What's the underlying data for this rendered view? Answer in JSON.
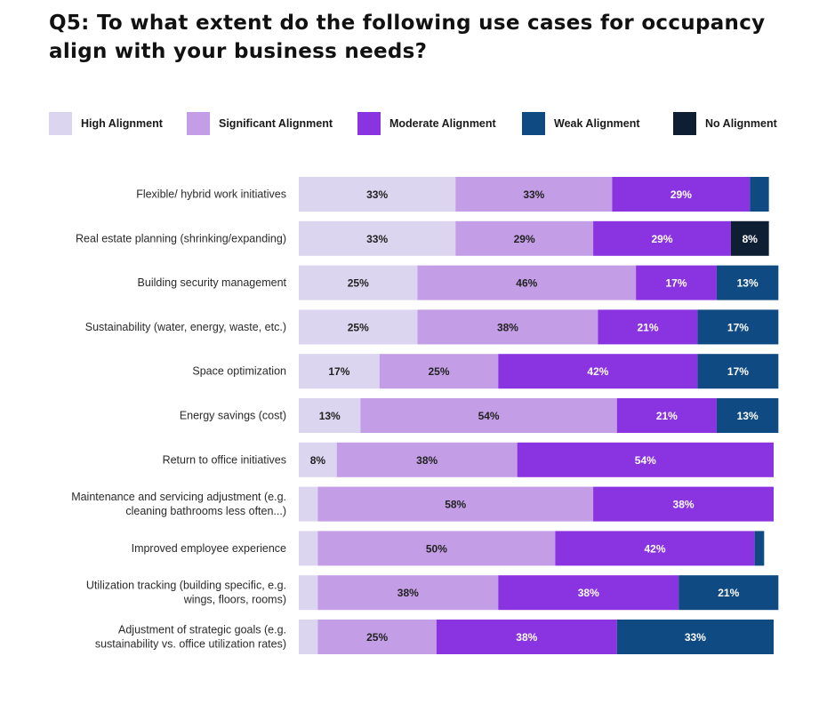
{
  "title": "Q5: To what extent do the following use cases for occupancy align with your business needs?",
  "legend": [
    {
      "name": "High Alignment",
      "color": "#dcd5ef"
    },
    {
      "name": "Significant Alignment",
      "color": "#c39ee6"
    },
    {
      "name": "Moderate Alignment",
      "color": "#8a33e0"
    },
    {
      "name": "Weak Alignment",
      "color": "#0f4a82"
    },
    {
      "name": "No Alignment",
      "color": "#0f1f33"
    }
  ],
  "chart_data": {
    "type": "bar",
    "orientation": "horizontal",
    "stacked": true,
    "percent_stacked": true,
    "title": "Q5: To what extent do the following use cases for occupancy align with your business needs?",
    "categories": [
      [
        "Flexible/ hybrid work initiatives"
      ],
      [
        "Real estate planning (shrinking/expanding)"
      ],
      [
        "Building security management"
      ],
      [
        "Sustainability (water, energy, waste, etc.)"
      ],
      [
        "Space optimization"
      ],
      [
        "Energy savings (cost)"
      ],
      [
        "Return to office initiatives"
      ],
      [
        "Maintenance and servicing adjustment (e.g.",
        "cleaning bathrooms less often...)"
      ],
      [
        "Improved employee experience"
      ],
      [
        "Utilization tracking (building specific, e.g.",
        "wings, floors, rooms)"
      ],
      [
        "Adjustment of strategic goals (e.g.",
        "sustainability vs. office utilization rates)"
      ]
    ],
    "series": [
      {
        "name": "High Alignment",
        "color": "#dcd5ef",
        "text_color": "#222222",
        "values": [
          33,
          33,
          25,
          25,
          17,
          13,
          8,
          4,
          4,
          4,
          4
        ]
      },
      {
        "name": "Significant Alignment",
        "color": "#c39ee6",
        "text_color": "#222222",
        "values": [
          33,
          29,
          46,
          38,
          25,
          54,
          38,
          58,
          50,
          38,
          25
        ]
      },
      {
        "name": "Moderate Alignment",
        "color": "#8a33e0",
        "text_color": "#ffffff",
        "values": [
          29,
          29,
          17,
          21,
          42,
          21,
          54,
          38,
          42,
          38,
          38
        ]
      },
      {
        "name": "Weak Alignment",
        "color": "#0f4a82",
        "text_color": "#ffffff",
        "values": [
          4,
          0,
          13,
          17,
          17,
          13,
          0,
          0,
          2,
          21,
          33
        ]
      },
      {
        "name": "No Alignment",
        "color": "#0f1f33",
        "text_color": "#ffffff",
        "values": [
          0,
          8,
          0,
          0,
          0,
          0,
          0,
          0,
          0,
          0,
          0
        ]
      }
    ],
    "data_labels": [
      [
        "33%",
        "33%",
        "29%",
        "",
        ""
      ],
      [
        "33%",
        "29%",
        "29%",
        "",
        "8%"
      ],
      [
        "25%",
        "46%",
        "17%",
        "13%",
        ""
      ],
      [
        "25%",
        "38%",
        "21%",
        "17%",
        ""
      ],
      [
        "17%",
        "25%",
        "42%",
        "17%",
        ""
      ],
      [
        "13%",
        "54%",
        "21%",
        "13%",
        ""
      ],
      [
        "8%",
        "38%",
        "54%",
        "",
        ""
      ],
      [
        "",
        "58%",
        "38%",
        "",
        ""
      ],
      [
        "",
        "50%",
        "42%",
        "",
        ""
      ],
      [
        "",
        "38%",
        "38%",
        "21%",
        ""
      ],
      [
        "",
        "25%",
        "38%",
        "33%",
        ""
      ]
    ],
    "xlim": [
      0,
      100
    ],
    "xlabel": "",
    "ylabel": "",
    "legend_position": "top"
  }
}
